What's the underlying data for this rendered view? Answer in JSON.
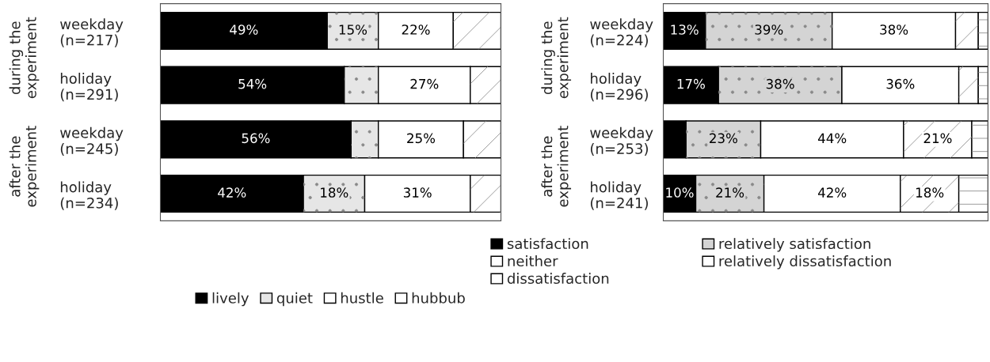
{
  "chart_data": [
    {
      "type": "bar",
      "orientation": "horizontal",
      "stacked": true,
      "xlim": [
        0,
        100
      ],
      "tick_labels": "y",
      "legend": "bottom",
      "categories": [
        "weekday\n(n=217)",
        "holiday\n(n=291)",
        "weekday\n(n=245)",
        "holiday\n(n=234)"
      ],
      "annotations": [
        "during the\nexperiment",
        "after the\nexperiment"
      ],
      "series": [
        {
          "name": "lively",
          "color": "#000000",
          "values": [
            49,
            54,
            56,
            42
          ],
          "value_labels": [
            "49%",
            "54%",
            "56%",
            "42%"
          ]
        },
        {
          "name": "quiet",
          "color": "#e6e6e6",
          "values": [
            15,
            10,
            8,
            18
          ],
          "value_labels": [
            "15%",
            null,
            null,
            "18%"
          ]
        },
        {
          "name": "hustle",
          "color": "#ffffff",
          "values": [
            22,
            27,
            25,
            31
          ],
          "value_labels": [
            "22%",
            "27%",
            "25%",
            "31%"
          ]
        },
        {
          "name": "hubbub",
          "color": "#ffffff",
          "values": [
            14,
            9,
            11,
            9
          ],
          "value_labels": [
            null,
            null,
            null,
            null
          ]
        }
      ]
    },
    {
      "type": "bar",
      "orientation": "horizontal",
      "stacked": true,
      "xlim": [
        0,
        100
      ],
      "tick_labels": "y",
      "legend": "bottom",
      "categories": [
        "weekday\n(n=224)",
        "holiday\n(n=296)",
        "weekday\n(n=253)",
        "holiday\n(n=241)"
      ],
      "annotations": [
        "during the\nexperiment",
        "after the\nexperiment"
      ],
      "series": [
        {
          "name": "satisfaction",
          "color": "#000000",
          "values": [
            13,
            17,
            7,
            10
          ],
          "value_labels": [
            "13%",
            "17%",
            null,
            "10%"
          ]
        },
        {
          "name": "relatively satisfaction",
          "color": "#d4d4d4",
          "values": [
            39,
            38,
            23,
            21
          ],
          "value_labels": [
            "39%",
            "38%",
            "23%",
            "21%"
          ]
        },
        {
          "name": "neither",
          "color": "#ffffff",
          "values": [
            38,
            36,
            44,
            42
          ],
          "value_labels": [
            "38%",
            "36%",
            "44%",
            "42%"
          ]
        },
        {
          "name": "relatively dissatisfaction",
          "color": "#ffffff",
          "values": [
            7,
            6,
            21,
            18
          ],
          "value_labels": [
            null,
            null,
            "21%",
            "18%"
          ]
        },
        {
          "name": "dissatisfaction",
          "color": "#ffffff",
          "values": [
            3,
            3,
            5,
            9
          ],
          "value_labels": [
            null,
            null,
            null,
            null
          ]
        }
      ]
    }
  ]
}
